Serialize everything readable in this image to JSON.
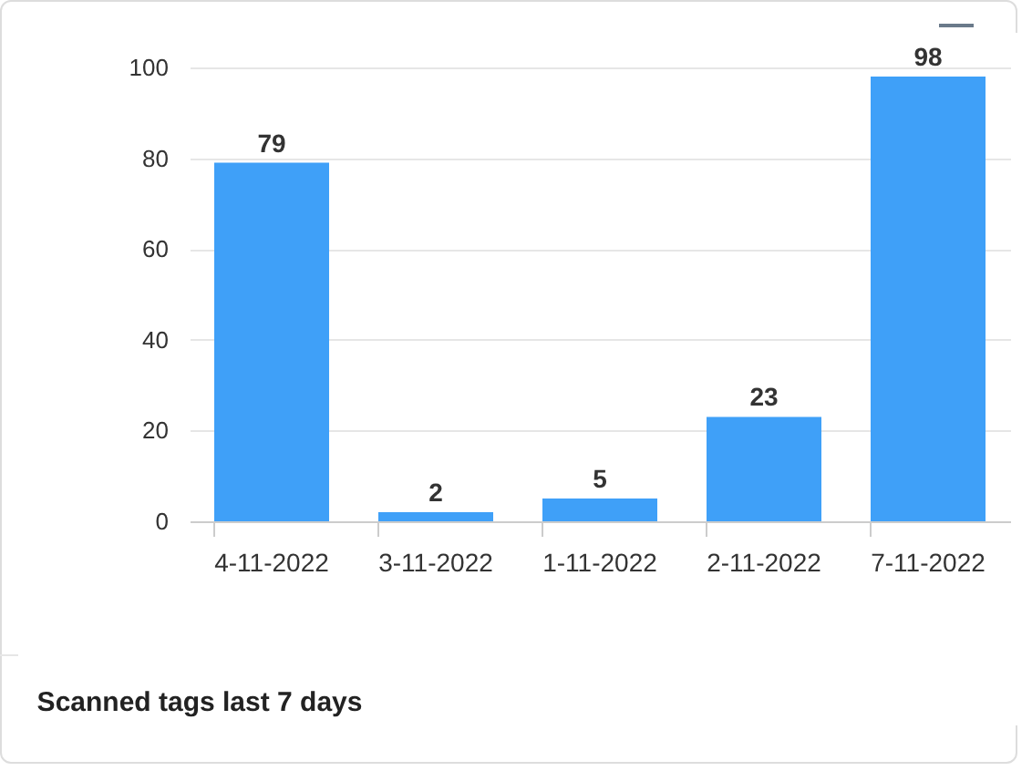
{
  "chart_data": {
    "type": "bar",
    "title": "Scanned tags last 7 days",
    "categories": [
      "4-11-2022",
      "3-11-2022",
      "1-11-2022",
      "2-11-2022",
      "7-11-2022"
    ],
    "values": [
      79,
      2,
      5,
      23,
      98
    ],
    "color": "#3fa0f8",
    "ylim": [
      0,
      100
    ],
    "yticks": [
      0,
      20,
      40,
      60,
      80,
      100
    ],
    "grid": "y",
    "data_labels": true
  }
}
